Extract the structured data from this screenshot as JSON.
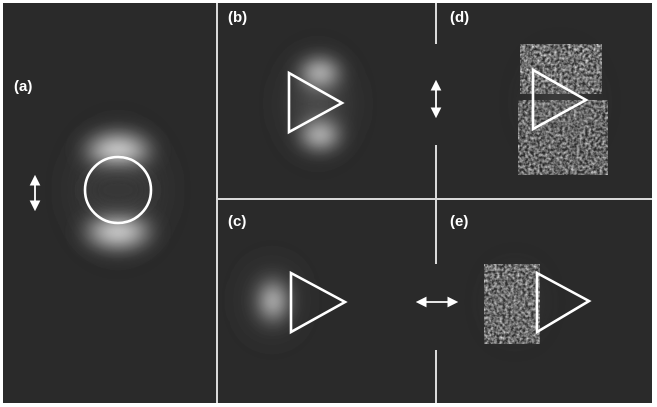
{
  "figure": {
    "panels": [
      {
        "id": "a",
        "label": "(a)",
        "shape": "circle",
        "polarization": "vertical"
      },
      {
        "id": "b",
        "label": "(b)",
        "shape": "triangle",
        "polarization": "vertical"
      },
      {
        "id": "c",
        "label": "(c)",
        "shape": "triangle",
        "polarization": "horizontal"
      },
      {
        "id": "d",
        "label": "(d)",
        "shape": "triangle",
        "polarization": "vertical"
      },
      {
        "id": "e",
        "label": "(e)",
        "shape": "triangle",
        "polarization": "horizontal"
      }
    ],
    "colors": {
      "background": "#2a2a2a",
      "divider": "#d9d9d9",
      "outline": "#ffffff",
      "glow": "#ffffff"
    },
    "icons": [
      "double-arrow-vertical-icon",
      "double-arrow-horizontal-icon"
    ]
  }
}
